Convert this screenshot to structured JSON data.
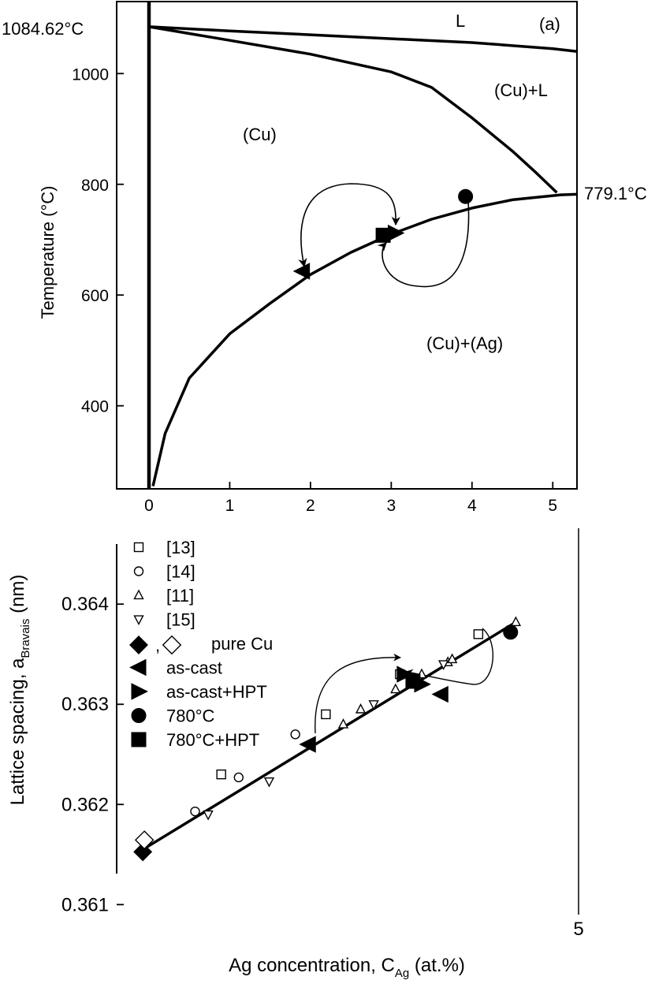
{
  "chart_data": [
    {
      "type": "line",
      "panel_label": "(a)",
      "ylabel": "Temperature (°C)",
      "xlim": [
        -0.4,
        5.3
      ],
      "ylim": [
        250,
        1130
      ],
      "xticks": [
        "0",
        "1",
        "2",
        "3",
        "4",
        "5"
      ],
      "yticks": [
        "400",
        "600",
        "800",
        "1000"
      ],
      "annotations": {
        "melting": "1084.62°C",
        "eutectic": "779.1°C",
        "region_L": "L",
        "region_cu_l": "(Cu)+L",
        "region_cu": "(Cu)",
        "region_cu_ag": "(Cu)+(Ag)"
      },
      "series": [
        {
          "role": "liquidus",
          "x": [
            0,
            1,
            2,
            3,
            4,
            5,
            5.3
          ],
          "y": [
            1084.62,
            1077,
            1070,
            1063,
            1056,
            1045,
            1040
          ]
        },
        {
          "role": "solidus",
          "x": [
            0,
            1,
            2,
            3,
            3.5,
            4,
            4.5,
            4.8,
            5.05
          ],
          "y": [
            1084.62,
            1060,
            1035,
            1003,
            975,
            920,
            860,
            820,
            785
          ]
        },
        {
          "role": "solvus",
          "x": [
            0.05,
            0.2,
            0.5,
            1,
            1.5,
            2,
            2.5,
            3,
            3.5,
            4,
            4.5,
            5.1,
            5.3
          ],
          "y": [
            255,
            350,
            450,
            530,
            585,
            637,
            677,
            710,
            737,
            757,
            772,
            781,
            782
          ]
        },
        {
          "role": "pure Cu axis",
          "x": [
            0,
            0
          ],
          "y": [
            250,
            1130
          ]
        }
      ],
      "points": [
        {
          "marker": "triangle-left",
          "x": 1.9,
          "y": 643
        },
        {
          "marker": "triangle-right",
          "x": 3.05,
          "y": 712
        },
        {
          "marker": "square",
          "x": 2.9,
          "y": 708
        },
        {
          "marker": "circle",
          "x": 3.92,
          "y": 778
        }
      ],
      "arrows": [
        {
          "from": "as-cast",
          "to": "as-cast+HPT"
        },
        {
          "from": "780°C",
          "to": "780°C+HPT"
        }
      ]
    },
    {
      "type": "scatter",
      "ylabel": "Lattice spacing, a",
      "ylabel_sub": "Bravais",
      "ylabel_unit": " (nm)",
      "xlabel": "Ag concentration, C",
      "xlabel_sub": "Ag",
      "xlabel_unit": " (at.%)",
      "xlim": [
        -0.3,
        5.0
      ],
      "ylim": [
        0.3609,
        0.3646
      ],
      "xticks": [
        "5"
      ],
      "yticks": [
        "0.361",
        "0.362",
        "0.363",
        "0.364"
      ],
      "legend_position": "top-left",
      "fit_line": {
        "x": [
          0,
          4.3
        ],
        "y": [
          0.36155,
          0.36383
        ]
      },
      "series": [
        {
          "name": "[13]",
          "marker": "open-square",
          "x": [
            0.9,
            2.1,
            2.95,
            3.85
          ],
          "y": [
            0.3623,
            0.3629,
            0.3633,
            0.3637
          ]
        },
        {
          "name": "[14]",
          "marker": "open-circle",
          "x": [
            0.6,
            1.1,
            1.75
          ],
          "y": [
            0.36193,
            0.36227,
            0.3627
          ]
        },
        {
          "name": "[11]",
          "marker": "open-triangle-up",
          "x": [
            2.3,
            2.5,
            2.9,
            3.2,
            3.5,
            3.55,
            4.28
          ],
          "y": [
            0.3628,
            0.36295,
            0.36315,
            0.3633,
            0.36342,
            0.36345,
            0.36382
          ]
        },
        {
          "name": "[15]",
          "marker": "open-triangle-down",
          "x": [
            0.75,
            1.45,
            2.65,
            3.45
          ],
          "y": [
            0.3619,
            0.36223,
            0.363,
            0.3634
          ]
        },
        {
          "name": "pure Cu",
          "marker": "diamond-pair",
          "x": [
            0.0
          ],
          "y": [
            0.36155
          ]
        },
        {
          "name": "as-cast",
          "marker": "triangle-left",
          "x": [
            1.9,
            3.42
          ],
          "y": [
            0.3626,
            0.3631
          ]
        },
        {
          "name": "as-cast+HPT",
          "marker": "triangle-right",
          "x": [
            3.0,
            3.2
          ],
          "y": [
            0.3633,
            0.3632
          ]
        },
        {
          "name": "780°C",
          "marker": "circle",
          "x": [
            4.22
          ],
          "y": [
            0.36372
          ]
        },
        {
          "name": "780°C+HPT",
          "marker": "square",
          "x": [
            3.1
          ],
          "y": [
            0.36323
          ]
        }
      ]
    }
  ]
}
